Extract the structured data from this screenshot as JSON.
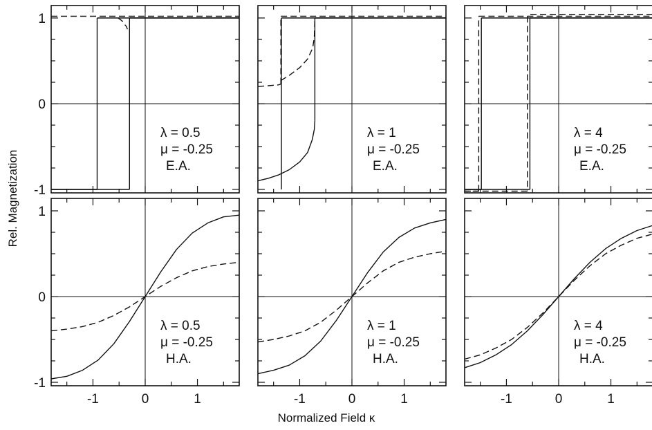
{
  "figure": {
    "ylabel": "Rel. Magnetization",
    "xlabel": "Normalized Field κ"
  },
  "chart_data": [
    {
      "type": "line",
      "row": "E.A.",
      "annotation": [
        "λ = 0.5",
        "μ = -0.25",
        "E.A."
      ],
      "xlim": [
        -1.8,
        1.8
      ],
      "ylim": [
        -1.05,
        1.05
      ],
      "xticks": [
        -1,
        0,
        1
      ],
      "yticks": [
        -1,
        0,
        1
      ],
      "series": [
        {
          "style": "solid",
          "segments": [
            {
              "x": [
                -1.8,
                -0.92
              ],
              "y": [
                -1,
                -1
              ]
            },
            {
              "x": [
                -0.92,
                -0.92
              ],
              "y": [
                -1,
                1
              ]
            },
            {
              "x": [
                -0.92,
                1.8
              ],
              "y": [
                1,
                1
              ]
            },
            {
              "x": [
                1.8,
                -0.3
              ],
              "y": [
                1,
                1
              ]
            },
            {
              "x": [
                -0.3,
                -0.3
              ],
              "y": [
                1,
                -1
              ]
            },
            {
              "x": [
                -0.3,
                -1.8
              ],
              "y": [
                -1,
                -1
              ]
            }
          ]
        },
        {
          "style": "dashed",
          "segments": [
            {
              "x": [
                -1.8,
                1.8
              ],
              "y": [
                1.02,
                1.02
              ]
            },
            {
              "x": [
                -0.52,
                -0.45,
                -0.4,
                -0.36,
                -0.34
              ],
              "y": [
                1.0,
                0.97,
                0.93,
                0.9,
                0.87
              ]
            }
          ]
        }
      ]
    },
    {
      "type": "line",
      "row": "E.A.",
      "annotation": [
        "λ = 1",
        "μ = -0.25",
        "E.A."
      ],
      "xlim": [
        -1.8,
        1.8
      ],
      "ylim": [
        -1.05,
        1.05
      ],
      "xticks": [
        -1,
        0,
        1
      ],
      "yticks": [
        -1,
        0,
        1
      ],
      "series": [
        {
          "style": "solid",
          "segments": [
            {
              "x": [
                -1.8,
                -1.6,
                -1.4,
                -1.2,
                -1.0,
                -0.85,
                -0.76,
                -0.72,
                -0.71
              ],
              "y": [
                -0.9,
                -0.87,
                -0.83,
                -0.77,
                -0.68,
                -0.57,
                -0.42,
                -0.3,
                -0.2
              ]
            },
            {
              "x": [
                -0.71,
                -0.71
              ],
              "y": [
                -0.2,
                1
              ]
            },
            {
              "x": [
                -0.71,
                1.8
              ],
              "y": [
                1,
                1
              ]
            },
            {
              "x": [
                1.8,
                -1.35
              ],
              "y": [
                1,
                1
              ]
            },
            {
              "x": [
                -1.35,
                -1.35
              ],
              "y": [
                1,
                -1
              ]
            }
          ]
        },
        {
          "style": "dashed",
          "segments": [
            {
              "x": [
                -1.8,
                -1.6,
                -1.4,
                -1.36
              ],
              "y": [
                0.2,
                0.21,
                0.22,
                0.23
              ]
            },
            {
              "x": [
                -1.36,
                -1.36
              ],
              "y": [
                0.23,
                1.02
              ]
            },
            {
              "x": [
                -1.36,
                1.8
              ],
              "y": [
                1.02,
                1.02
              ]
            },
            {
              "x": [
                -1.36,
                -1.2,
                -1.0,
                -0.85,
                -0.75,
                -0.72,
                -0.71
              ],
              "y": [
                0.27,
                0.33,
                0.42,
                0.52,
                0.65,
                0.78,
                1.0
              ]
            }
          ]
        }
      ]
    },
    {
      "type": "line",
      "row": "E.A.",
      "annotation": [
        "λ = 4",
        "μ = -0.25",
        "E.A."
      ],
      "xlim": [
        -1.8,
        1.8
      ],
      "ylim": [
        -1.05,
        1.05
      ],
      "xticks": [
        -1,
        0,
        1
      ],
      "yticks": [
        -1,
        0,
        1
      ],
      "series": [
        {
          "style": "solid",
          "segments": [
            {
              "x": [
                -1.8,
                -1.48
              ],
              "y": [
                -1,
                -1
              ]
            },
            {
              "x": [
                -1.48,
                -1.48
              ],
              "y": [
                -1,
                1
              ]
            },
            {
              "x": [
                -1.48,
                1.8
              ],
              "y": [
                1,
                1
              ]
            },
            {
              "x": [
                1.8,
                -0.55
              ],
              "y": [
                1,
                1
              ]
            },
            {
              "x": [
                -0.55,
                -0.55
              ],
              "y": [
                1,
                -1
              ]
            },
            {
              "x": [
                -0.55,
                -1.8
              ],
              "y": [
                -1,
                -1
              ]
            }
          ]
        },
        {
          "style": "dashed",
          "segments": [
            {
              "x": [
                -1.8,
                -1.53
              ],
              "y": [
                -1.02,
                -1.02
              ]
            },
            {
              "x": [
                -1.53,
                -1.53
              ],
              "y": [
                -1.02,
                1.02
              ]
            },
            {
              "x": [
                -1.53,
                1.8
              ],
              "y": [
                1.02,
                1.02
              ]
            },
            {
              "x": [
                1.8,
                -0.6
              ],
              "y": [
                1.04,
                1.04
              ]
            },
            {
              "x": [
                -0.6,
                -0.6
              ],
              "y": [
                1.02,
                -1.02
              ]
            },
            {
              "x": [
                -0.6,
                -1.8
              ],
              "y": [
                -1.02,
                -1.02
              ]
            }
          ]
        }
      ]
    },
    {
      "type": "line",
      "row": "H.A.",
      "annotation": [
        "λ = 0.5",
        "μ = -0.25",
        "H.A."
      ],
      "xlim": [
        -1.8,
        1.8
      ],
      "ylim": [
        -1.05,
        1.05
      ],
      "xticks": [
        -1,
        0,
        1
      ],
      "yticks": [
        -1,
        0,
        1
      ],
      "series": [
        {
          "style": "solid",
          "segments": [
            {
              "x": [
                -1.8,
                -1.5,
                -1.2,
                -0.9,
                -0.6,
                -0.3,
                0,
                0.3,
                0.6,
                0.9,
                1.2,
                1.5,
                1.8
              ],
              "y": [
                -0.96,
                -0.93,
                -0.86,
                -0.74,
                -0.55,
                -0.29,
                0,
                0.29,
                0.55,
                0.74,
                0.86,
                0.93,
                0.95
              ]
            }
          ]
        },
        {
          "style": "dashed",
          "segments": [
            {
              "x": [
                -1.8,
                -1.5,
                -1.2,
                -0.9,
                -0.6,
                -0.3,
                0,
                0.3,
                0.6,
                0.9,
                1.2,
                1.5,
                1.8
              ],
              "y": [
                -0.4,
                -0.38,
                -0.35,
                -0.3,
                -0.22,
                -0.12,
                0,
                0.12,
                0.22,
                0.3,
                0.35,
                0.38,
                0.4
              ]
            }
          ]
        }
      ]
    },
    {
      "type": "line",
      "row": "H.A.",
      "annotation": [
        "λ = 1",
        "μ = -0.25",
        "H.A."
      ],
      "xlim": [
        -1.8,
        1.8
      ],
      "ylim": [
        -1.05,
        1.05
      ],
      "xticks": [
        -1,
        0,
        1
      ],
      "yticks": [
        -1,
        0,
        1
      ],
      "series": [
        {
          "style": "solid",
          "segments": [
            {
              "x": [
                -1.8,
                -1.5,
                -1.2,
                -0.9,
                -0.6,
                -0.3,
                0,
                0.3,
                0.6,
                0.9,
                1.2,
                1.5,
                1.8
              ],
              "y": [
                -0.9,
                -0.86,
                -0.8,
                -0.69,
                -0.52,
                -0.28,
                0,
                0.28,
                0.52,
                0.69,
                0.8,
                0.86,
                0.9
              ]
            }
          ]
        },
        {
          "style": "dashed",
          "segments": [
            {
              "x": [
                -1.8,
                -1.5,
                -1.2,
                -0.9,
                -0.6,
                -0.3,
                0,
                0.3,
                0.6,
                0.9,
                1.2,
                1.5,
                1.8
              ],
              "y": [
                -0.53,
                -0.5,
                -0.46,
                -0.4,
                -0.3,
                -0.16,
                0,
                0.16,
                0.3,
                0.4,
                0.46,
                0.5,
                0.53
              ]
            }
          ]
        }
      ]
    },
    {
      "type": "line",
      "row": "H.A.",
      "annotation": [
        "λ = 4",
        "μ = -0.25",
        "H.A."
      ],
      "xlim": [
        -1.8,
        1.8
      ],
      "ylim": [
        -1.05,
        1.05
      ],
      "xticks": [
        -1,
        0,
        1
      ],
      "yticks": [
        -1,
        0,
        1
      ],
      "series": [
        {
          "style": "solid",
          "segments": [
            {
              "x": [
                -1.8,
                -1.5,
                -1.2,
                -0.9,
                -0.6,
                -0.3,
                0,
                0.3,
                0.6,
                0.9,
                1.2,
                1.5,
                1.8
              ],
              "y": [
                -0.83,
                -0.77,
                -0.68,
                -0.56,
                -0.4,
                -0.21,
                0,
                0.21,
                0.4,
                0.56,
                0.68,
                0.77,
                0.83
              ]
            }
          ]
        },
        {
          "style": "dashed",
          "segments": [
            {
              "x": [
                -1.8,
                -1.5,
                -1.2,
                -0.9,
                -0.6,
                -0.3,
                0,
                0.3,
                0.6,
                0.9,
                1.2,
                1.5,
                1.8
              ],
              "y": [
                -0.73,
                -0.68,
                -0.6,
                -0.5,
                -0.36,
                -0.19,
                0,
                0.19,
                0.36,
                0.5,
                0.6,
                0.68,
                0.73
              ]
            }
          ]
        }
      ]
    }
  ]
}
